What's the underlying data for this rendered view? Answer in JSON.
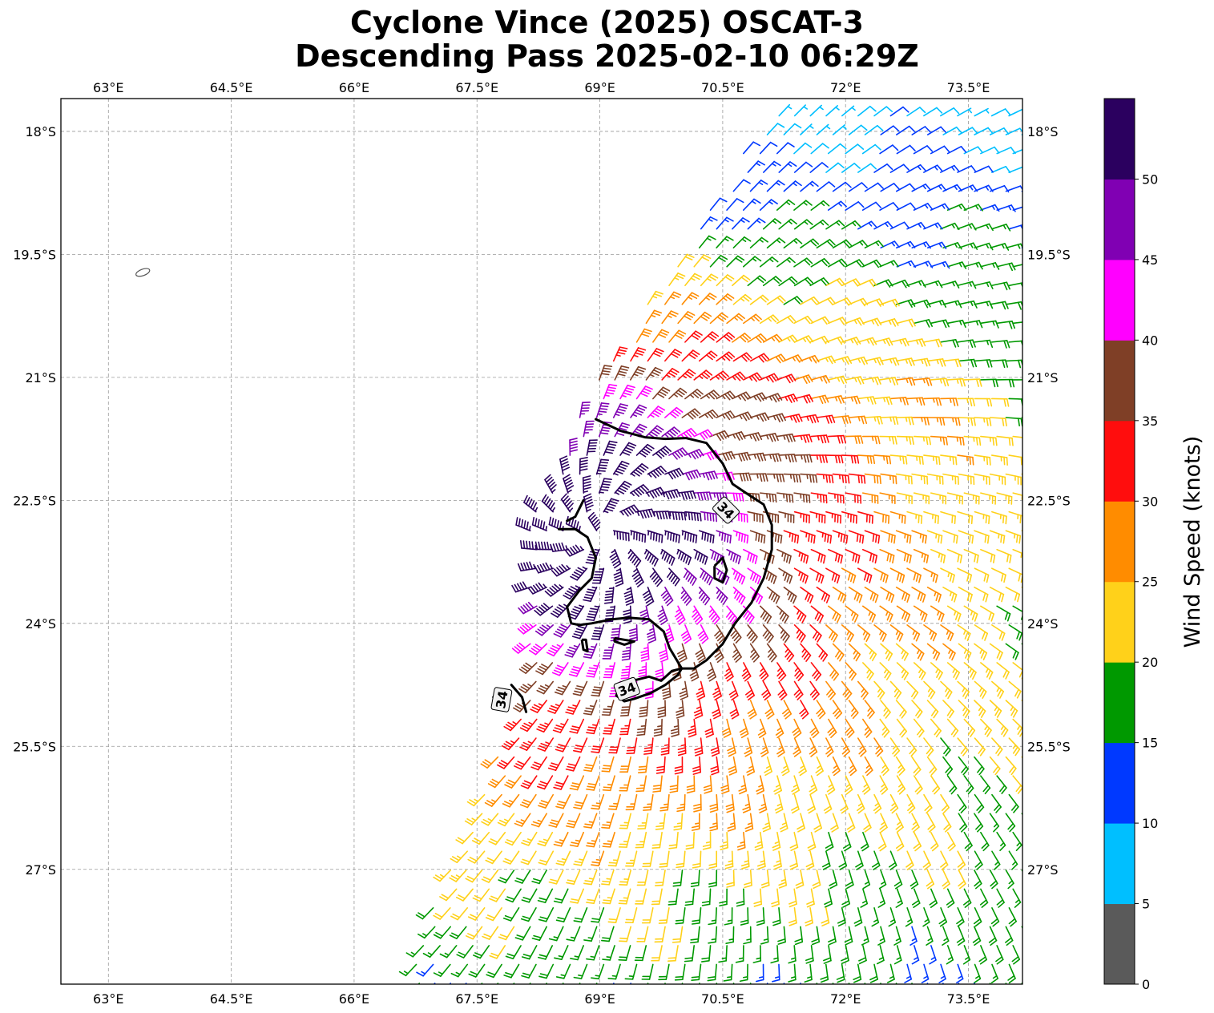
{
  "title": {
    "line1": "Cyclone Vince (2025) OSCAT-3",
    "line2": "Descending Pass 2025-02-10 06:29Z"
  },
  "map": {
    "lon_range": [
      62.42,
      74.16
    ],
    "lat_range": [
      -28.4,
      -17.6
    ],
    "lon_ticks": [
      {
        "value": 63.0,
        "label": "63°E"
      },
      {
        "value": 64.5,
        "label": "64.5°E"
      },
      {
        "value": 66.0,
        "label": "66°E"
      },
      {
        "value": 67.5,
        "label": "67.5°E"
      },
      {
        "value": 69.0,
        "label": "69°E"
      },
      {
        "value": 70.5,
        "label": "70.5°E"
      },
      {
        "value": 72.0,
        "label": "72°E"
      },
      {
        "value": 73.5,
        "label": "73.5°E"
      }
    ],
    "lat_ticks": [
      {
        "value": -18.0,
        "label": "18°S"
      },
      {
        "value": -19.5,
        "label": "19.5°S"
      },
      {
        "value": -21.0,
        "label": "21°S"
      },
      {
        "value": -22.5,
        "label": "22.5°S"
      },
      {
        "value": -24.0,
        "label": "24°S"
      },
      {
        "value": -25.5,
        "label": "25.5°S"
      },
      {
        "value": -27.0,
        "label": "27°S"
      }
    ],
    "grid": true,
    "island": {
      "lon": 63.42,
      "lat": -19.72
    },
    "swath_edge": [
      [
        66.6,
        -28.4
      ],
      [
        68.0,
        -25.0
      ],
      [
        68.0,
        -23.0
      ],
      [
        69.0,
        -21.0
      ],
      [
        70.0,
        -19.5
      ],
      [
        71.2,
        -17.6
      ]
    ],
    "storm_center": {
      "lon": 69.0,
      "lat": -22.9
    },
    "contour_label": "34",
    "contour_label_positions": [
      [
        70.54,
        -22.62
      ],
      [
        69.33,
        -24.8
      ],
      [
        67.8,
        -24.93
      ]
    ],
    "contour_34kt_main": [
      [
        68.95,
        -21.51
      ],
      [
        69.25,
        -21.65
      ],
      [
        69.55,
        -21.73
      ],
      [
        69.8,
        -21.75
      ],
      [
        70.05,
        -21.74
      ],
      [
        70.3,
        -21.8
      ],
      [
        70.5,
        -22.05
      ],
      [
        70.62,
        -22.3
      ],
      [
        70.8,
        -22.42
      ],
      [
        71.0,
        -22.55
      ],
      [
        71.1,
        -22.8
      ],
      [
        71.1,
        -23.1
      ],
      [
        71.0,
        -23.45
      ],
      [
        70.85,
        -23.75
      ],
      [
        70.65,
        -24.0
      ],
      [
        70.5,
        -24.25
      ],
      [
        70.3,
        -24.45
      ],
      [
        70.15,
        -24.55
      ],
      [
        70.0,
        -24.55
      ],
      [
        69.85,
        -24.3
      ],
      [
        69.78,
        -24.1
      ],
      [
        69.6,
        -23.95
      ],
      [
        69.35,
        -23.93
      ],
      [
        69.15,
        -23.95
      ],
      [
        68.9,
        -24.0
      ],
      [
        68.75,
        -24.02
      ],
      [
        68.65,
        -24.0
      ],
      [
        68.6,
        -23.8
      ],
      [
        68.75,
        -23.6
      ],
      [
        68.9,
        -23.45
      ],
      [
        68.95,
        -23.2
      ],
      [
        68.85,
        -22.95
      ],
      [
        68.7,
        -22.85
      ],
      [
        68.5,
        -22.85
      ]
    ],
    "contour_34kt_loops": [
      [
        [
          70.4,
          -23.3
        ],
        [
          70.5,
          -23.2
        ],
        [
          70.55,
          -23.35
        ],
        [
          70.5,
          -23.5
        ],
        [
          70.4,
          -23.45
        ],
        [
          70.4,
          -23.3
        ]
      ],
      [
        [
          69.18,
          -24.18
        ],
        [
          69.3,
          -24.2
        ],
        [
          69.42,
          -24.22
        ],
        [
          69.3,
          -24.26
        ],
        [
          69.18,
          -24.22
        ],
        [
          69.18,
          -24.18
        ]
      ],
      [
        [
          68.78,
          -24.2
        ],
        [
          68.8,
          -24.32
        ],
        [
          68.85,
          -24.34
        ],
        [
          68.83,
          -24.2
        ],
        [
          68.78,
          -24.2
        ]
      ],
      [
        [
          69.4,
          -24.7
        ],
        [
          69.6,
          -24.65
        ],
        [
          69.75,
          -24.7
        ],
        [
          69.88,
          -24.58
        ],
        [
          70.0,
          -24.55
        ],
        [
          69.95,
          -24.63
        ],
        [
          69.8,
          -24.75
        ],
        [
          69.62,
          -24.85
        ],
        [
          69.42,
          -24.92
        ],
        [
          69.3,
          -24.95
        ],
        [
          69.2,
          -24.88
        ],
        [
          69.25,
          -24.78
        ],
        [
          69.4,
          -24.7
        ]
      ]
    ],
    "contour_34kt_fragments": [
      [
        [
          68.6,
          -22.75
        ],
        [
          68.7,
          -22.7
        ],
        [
          68.8,
          -22.5
        ]
      ],
      [
        [
          67.92,
          -24.75
        ],
        [
          68.05,
          -24.9
        ],
        [
          68.1,
          -25.08
        ]
      ],
      [
        [
          67.7,
          -24.9
        ],
        [
          67.75,
          -24.98
        ]
      ]
    ]
  },
  "colorbar": {
    "label": "Wind Speed (knots)",
    "min": 0,
    "max": 55,
    "bins": [
      {
        "from": 0,
        "to": 5,
        "color": "#5a5a5a"
      },
      {
        "from": 5,
        "to": 10,
        "color": "#00bfff"
      },
      {
        "from": 10,
        "to": 15,
        "color": "#0039ff"
      },
      {
        "from": 15,
        "to": 20,
        "color": "#009900"
      },
      {
        "from": 20,
        "to": 25,
        "color": "#ffd11a"
      },
      {
        "from": 25,
        "to": 30,
        "color": "#ff8c00"
      },
      {
        "from": 30,
        "to": 35,
        "color": "#ff0d0d"
      },
      {
        "from": 35,
        "to": 40,
        "color": "#7f3f26"
      },
      {
        "from": 40,
        "to": 45,
        "color": "#ff00ff"
      },
      {
        "from": 45,
        "to": 50,
        "color": "#8000b3"
      },
      {
        "from": 50,
        "to": 55,
        "color": "#2b005f"
      }
    ],
    "ticks": [
      {
        "value": 0,
        "label": "0"
      },
      {
        "value": 5,
        "label": "5"
      },
      {
        "value": 10,
        "label": "10"
      },
      {
        "value": 15,
        "label": "15"
      },
      {
        "value": 20,
        "label": "20"
      },
      {
        "value": 25,
        "label": "25"
      },
      {
        "value": 30,
        "label": "30"
      },
      {
        "value": 35,
        "label": "35"
      },
      {
        "value": 40,
        "label": "40"
      },
      {
        "value": 45,
        "label": "45"
      },
      {
        "value": 50,
        "label": "50"
      }
    ]
  }
}
